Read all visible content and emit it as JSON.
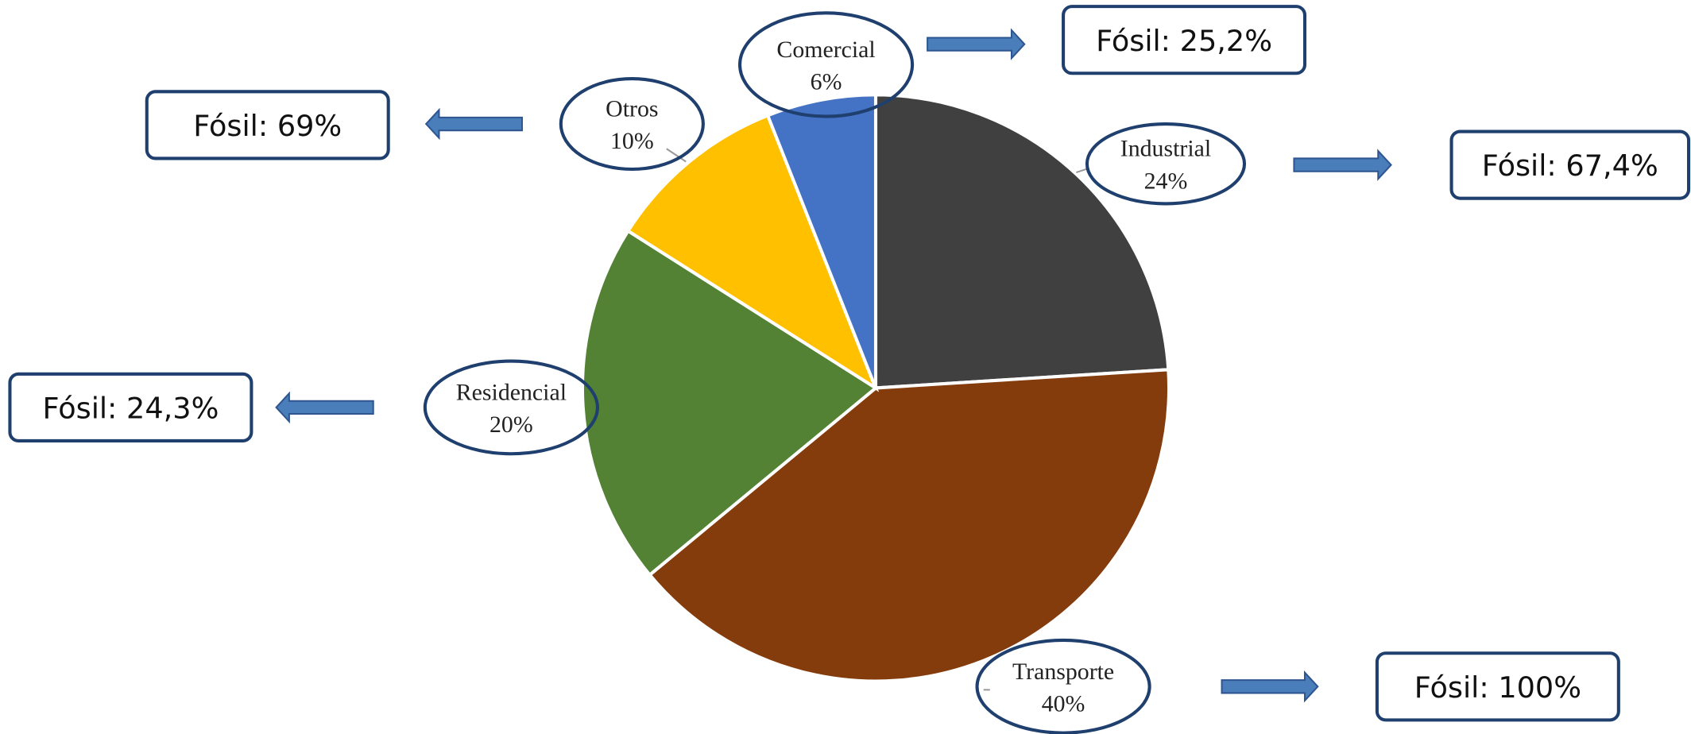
{
  "chart_data": {
    "type": "pie",
    "categories": [
      "Industrial",
      "Transporte",
      "Residencial",
      "Otros",
      "Comercial"
    ],
    "values": [
      24,
      40,
      20,
      10,
      6
    ],
    "value_labels": [
      "24%",
      "40%",
      "20%",
      "10%",
      "6%"
    ],
    "colors": [
      "#404040",
      "#843c0c",
      "#548235",
      "#ffc000",
      "#4472c4"
    ],
    "fossil_labels": [
      "Fósil: 67,4%",
      "Fósil: 100%",
      "Fósil: 24,3%",
      "Fósil: 69%",
      "Fósil: 25,2%"
    ]
  }
}
